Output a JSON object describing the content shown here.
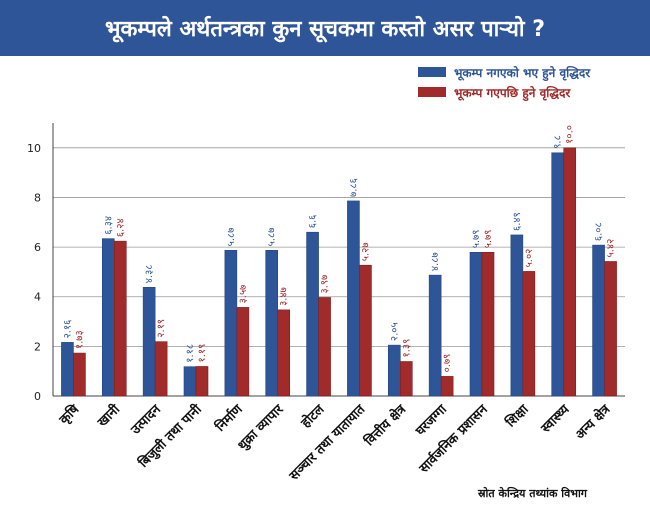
{
  "title": "भूकम्पले अर्थतन्त्रका कुन सूचकमा कस्तो असर पार्‍यो ?",
  "source": "स्रोत केन्द्रिय तथ्यांक विभाग",
  "chart_data": {
    "type": "bar",
    "categories": [
      "कृषि",
      "खानी",
      "उत्पादन",
      "बिजुली तथा पानी",
      "निर्माण",
      "थुक्रा व्यापार",
      "होटल",
      "सञ्चार तथा यातायात",
      "वित्तीय क्षेत्र",
      "घरजग्गा",
      "सार्वजनिक प्रशासन",
      "शिक्षा",
      "स्वास्थ्य",
      "अन्य क्षेत्र"
    ],
    "series": [
      {
        "name": "भूकम्प नगएको भए हुने वृद्धिदर",
        "color": "#2e5597",
        "values": [
          2.16,
          6.34,
          4.38,
          1.18,
          5.87,
          5.87,
          6.6,
          7.86,
          2.05,
          4.87,
          5.79,
          6.49,
          9.8,
          6.08
        ],
        "labels": [
          "२.१६",
          "६.३४",
          "४.३८",
          "१.१८",
          "५.८७",
          "५.८७",
          "६.६",
          "७.८६",
          "२.०५",
          "४.८७",
          "५.७९",
          "६.४९",
          "९.८",
          "६.०८"
        ]
      },
      {
        "name": "भूकम्प गएपछि हुने वृद्धिदर",
        "color": "#a12a2a",
        "values": [
          1.73,
          6.24,
          2.19,
          1.19,
          3.57,
          3.47,
          3.97,
          5.27,
          1.39,
          0.79,
          5.79,
          5.02,
          10.0,
          5.42
        ],
        "labels": [
          "१.७३",
          "६.२४",
          "२.१९",
          "१.१९",
          "३.५७",
          "३.४७",
          "३.९७",
          "५.२७",
          "१.३९",
          "०.७९",
          "५.७९",
          "५.०२",
          "१०.०",
          "५.४२"
        ]
      }
    ],
    "ylim": [
      0,
      11
    ],
    "yticks": [
      0,
      2,
      4,
      6,
      8,
      10
    ],
    "grid": true,
    "legend": "top-right"
  }
}
